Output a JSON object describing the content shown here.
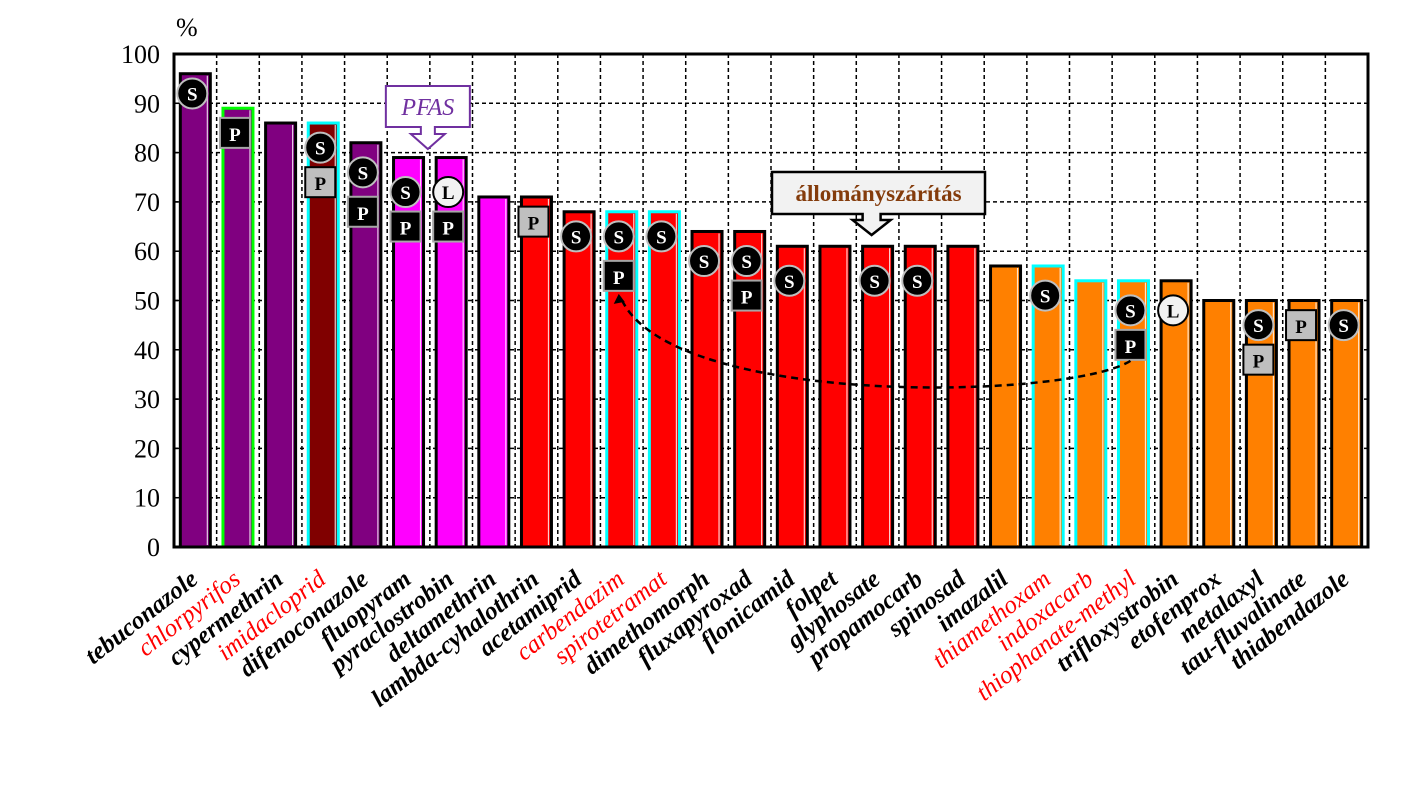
{
  "chart_data": {
    "type": "bar",
    "title": "",
    "xlabel": "",
    "ylabel": "%",
    "ylim": [
      0,
      100
    ],
    "yticks": [
      "0",
      "10",
      "20",
      "30",
      "40",
      "50",
      "60",
      "70",
      "80",
      "90",
      "100"
    ],
    "grid": true,
    "categories": [
      "tebuconazole",
      "chlorpyrifos",
      "cypermethrin",
      "imidacloprid",
      "difenoconazole",
      "fluopyram",
      "pyraclostrobin",
      "deltamethrin",
      "lambda-cyhalothrin",
      "acetamiprid",
      "carbendazim",
      "spirotetramat",
      "dimethomorph",
      "fluxapyroxad",
      "flonicamid",
      "folpet",
      "glyphosate",
      "propamocarb",
      "spinosad",
      "imazalil",
      "thiamethoxam",
      "indoxacarb",
      "thiophanate-methyl",
      "trifloxystrobin",
      "etofenprox",
      "metalaxyl",
      "tau-fluvalinate",
      "thiabendazole"
    ],
    "values": [
      96,
      89,
      86,
      86,
      82,
      79,
      79,
      71,
      71,
      68,
      68,
      68,
      64,
      64,
      61,
      61,
      61,
      61,
      61,
      57,
      57,
      54,
      54,
      54,
      50,
      50,
      50,
      50
    ],
    "label_colors": [
      "black",
      "red",
      "black",
      "red",
      "black",
      "black",
      "black",
      "black",
      "black",
      "black",
      "red",
      "red",
      "black",
      "black",
      "black",
      "black",
      "black",
      "black",
      "black",
      "black",
      "red",
      "red",
      "red",
      "black",
      "black",
      "black",
      "black",
      "black"
    ],
    "bar_fill": [
      "#800080",
      "#800080",
      "#800080",
      "#800000",
      "#800080",
      "#ff00ff",
      "#ff00ff",
      "#ff00ff",
      "#ff0000",
      "#ff0000",
      "#ff0000",
      "#ff0000",
      "#ff0000",
      "#ff0000",
      "#ff0000",
      "#ff0000",
      "#ff0000",
      "#ff0000",
      "#ff0000",
      "#ff8000",
      "#ff8000",
      "#ff8000",
      "#ff8000",
      "#ff8000",
      "#ff8000",
      "#ff8000",
      "#ff8000",
      "#ff8000"
    ],
    "bar_outline": [
      "#000000",
      "#00ff00",
      "#000000",
      "#00ffff",
      "#000000",
      "#000000",
      "#000000",
      "#000000",
      "#000000",
      "#000000",
      "#00ffff",
      "#00ffff",
      "#000000",
      "#000000",
      "#000000",
      "#000000",
      "#000000",
      "#000000",
      "#000000",
      "#000000",
      "#00ffff",
      "#00ffff",
      "#00ffff",
      "#000000",
      "#000000",
      "#000000",
      "#000000",
      "#000000"
    ],
    "markers": [
      [
        {
          "type": "S",
          "value": 92
        }
      ],
      [
        {
          "type": "P-black",
          "value": 84
        }
      ],
      [],
      [
        {
          "type": "S",
          "value": 81
        },
        {
          "type": "P-gray",
          "value": 74
        }
      ],
      [
        {
          "type": "S",
          "value": 76
        },
        {
          "type": "P-black",
          "value": 68
        }
      ],
      [
        {
          "type": "S",
          "value": 72
        },
        {
          "type": "P-black",
          "value": 65
        }
      ],
      [
        {
          "type": "L",
          "value": 72
        },
        {
          "type": "P-black",
          "value": 65
        }
      ],
      [],
      [
        {
          "type": "P-gray",
          "value": 66
        }
      ],
      [
        {
          "type": "S",
          "value": 63
        }
      ],
      [
        {
          "type": "S",
          "value": 63
        },
        {
          "type": "P-black",
          "value": 55
        }
      ],
      [
        {
          "type": "S",
          "value": 63
        }
      ],
      [
        {
          "type": "S",
          "value": 58
        }
      ],
      [
        {
          "type": "S",
          "value": 58
        },
        {
          "type": "P-black",
          "value": 51
        }
      ],
      [
        {
          "type": "S",
          "value": 54
        }
      ],
      [],
      [
        {
          "type": "S",
          "value": 54
        }
      ],
      [
        {
          "type": "S",
          "value": 54
        }
      ],
      [],
      [],
      [
        {
          "type": "S",
          "value": 51
        }
      ],
      [],
      [
        {
          "type": "S",
          "value": 48
        },
        {
          "type": "P-black",
          "value": 41
        }
      ],
      [
        {
          "type": "L",
          "value": 48
        }
      ],
      [],
      [
        {
          "type": "S",
          "value": 45
        },
        {
          "type": "P-gray",
          "value": 38
        }
      ],
      [
        {
          "type": "P-gray",
          "value": 45
        }
      ],
      [
        {
          "type": "S",
          "value": 45
        }
      ]
    ],
    "marker_letters": {
      "S": "S",
      "P": "P",
      "L": "L"
    },
    "annotations": {
      "pfas": {
        "text": "PFAS",
        "color": "#7030a0",
        "target": "fluopyram"
      },
      "drying": {
        "text": "állományszárítás",
        "color": "#843c0c",
        "target": "glyphosate"
      },
      "arrow": {
        "from": "thiophanate-methyl",
        "to": "carbendazim",
        "style": "dashed"
      }
    },
    "colors": {
      "label_red": "#ff0000",
      "label_black": "#000000",
      "grid": "#000000"
    }
  }
}
